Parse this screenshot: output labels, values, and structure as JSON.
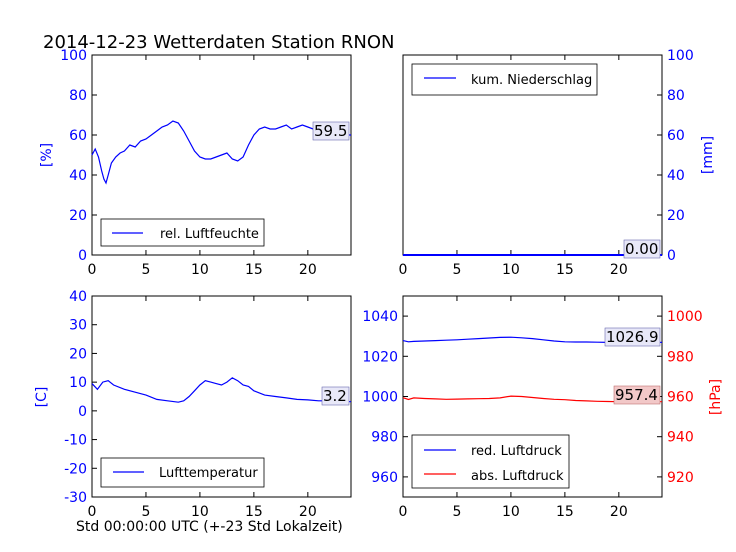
{
  "figure": {
    "title": "2014-12-23 Wetterdaten Station RNON",
    "xlabel": "Std 00:00:00 UTC (+-23 Std Lokalzeit)"
  },
  "colors": {
    "axis_blue": "#0000ff",
    "axis_red": "#ff0000",
    "line_blue": "#0000ff",
    "line_red": "#ff0000"
  },
  "chart_data": [
    {
      "id": "humidity",
      "type": "line",
      "ylabel": "[%]",
      "xlim": [
        0,
        24
      ],
      "ylim": [
        0,
        100
      ],
      "xticks": [
        0,
        5,
        10,
        15,
        20
      ],
      "yticks": [
        0,
        20,
        40,
        60,
        80,
        100
      ],
      "legend": "lower-left",
      "series": [
        {
          "name": "rel. Luftfeuchte",
          "color": "#0000ff",
          "x": [
            0,
            0.3,
            0.6,
            0.9,
            1.1,
            1.3,
            1.5,
            1.8,
            2.2,
            2.6,
            3.0,
            3.5,
            4.0,
            4.5,
            5.0,
            5.5,
            6.0,
            6.5,
            7.0,
            7.5,
            8.0,
            8.5,
            9.0,
            9.5,
            10.0,
            10.5,
            11.0,
            11.5,
            12.0,
            12.5,
            13.0,
            13.5,
            14.0,
            14.5,
            15.0,
            15.5,
            16.0,
            16.5,
            17.0,
            17.5,
            18.0,
            18.5,
            19.0,
            19.5,
            20.0,
            20.5,
            21.0,
            21.5,
            22.0,
            22.5,
            23.0,
            23.5,
            24.0
          ],
          "y": [
            50,
            53,
            49,
            42,
            38,
            36,
            40,
            46,
            49,
            51,
            52,
            55,
            54,
            57,
            58,
            60,
            62,
            64,
            65,
            67,
            66,
            62,
            57,
            52,
            49,
            48,
            48,
            49,
            50,
            51,
            48,
            47,
            49,
            55,
            60,
            63,
            64,
            63,
            63,
            64,
            65,
            63,
            64,
            65,
            64,
            63,
            62,
            62,
            61,
            61,
            60,
            60,
            60
          ]
        }
      ],
      "annotation": "59.5"
    },
    {
      "id": "precip",
      "type": "line",
      "ylabel": "[mm]",
      "xlim": [
        0,
        24
      ],
      "ylim": [
        0,
        100
      ],
      "xticks": [
        0,
        5,
        10,
        15,
        20
      ],
      "yticks": [
        0,
        20,
        40,
        60,
        80,
        100
      ],
      "legend": "upper-left",
      "series": [
        {
          "name": "kum. Niederschlag",
          "color": "#0000ff",
          "x": [
            0,
            24
          ],
          "y": [
            0,
            0
          ]
        }
      ],
      "annotation": "0.00"
    },
    {
      "id": "temperature",
      "type": "line",
      "ylabel": "[C]",
      "xlim": [
        0,
        24
      ],
      "ylim": [
        -30,
        40
      ],
      "xticks": [
        0,
        5,
        10,
        15,
        20
      ],
      "yticks": [
        -30,
        -20,
        -10,
        0,
        10,
        20,
        30,
        40
      ],
      "legend": "lower-left",
      "series": [
        {
          "name": "Lufttemperatur",
          "color": "#0000ff",
          "x": [
            0,
            0.5,
            1.0,
            1.5,
            2.0,
            3.0,
            4.0,
            5.0,
            6.0,
            7.0,
            8.0,
            8.5,
            9.0,
            9.5,
            10.0,
            10.5,
            11.0,
            11.5,
            12.0,
            12.5,
            13.0,
            13.5,
            14.0,
            14.5,
            15.0,
            16.0,
            17.0,
            18.0,
            19.0,
            20.0,
            21.0,
            22.0,
            23.0,
            24.0
          ],
          "y": [
            9.5,
            7.5,
            10.0,
            10.5,
            9.0,
            7.5,
            6.5,
            5.5,
            4.0,
            3.5,
            3.0,
            3.5,
            5.0,
            7.0,
            9.0,
            10.5,
            10.0,
            9.5,
            9.0,
            10.0,
            11.5,
            10.5,
            9.0,
            8.5,
            7.0,
            5.5,
            5.0,
            4.5,
            4.0,
            3.8,
            3.5,
            3.5,
            3.3,
            3.2
          ]
        }
      ],
      "annotation": "3.2"
    },
    {
      "id": "pressure",
      "type": "line",
      "ylabel": "[hPa]",
      "xlim": [
        0,
        24
      ],
      "ylim_left": [
        950,
        1050
      ],
      "ylim_right": [
        910,
        1010
      ],
      "xticks": [
        0,
        5,
        10,
        15,
        20
      ],
      "yticks_left": [
        960,
        980,
        1000,
        1020,
        1040
      ],
      "yticks_right": [
        920,
        940,
        960,
        980,
        1000
      ],
      "legend": "lower-left",
      "series": [
        {
          "name": "red. Luftdruck",
          "axis": "left",
          "color": "#0000ff",
          "x": [
            0,
            0.5,
            1.0,
            2.0,
            3.0,
            4.0,
            5.0,
            6.0,
            7.0,
            8.0,
            9.0,
            10.0,
            11.0,
            12.0,
            13.0,
            14.0,
            15.0,
            16.0,
            17.0,
            18.0,
            19.0,
            20.0,
            21.0,
            22.0,
            23.0,
            24.0
          ],
          "y": [
            1027.8,
            1027.2,
            1027.4,
            1027.6,
            1027.8,
            1028.0,
            1028.2,
            1028.5,
            1028.8,
            1029.1,
            1029.4,
            1029.5,
            1029.2,
            1028.8,
            1028.2,
            1027.6,
            1027.2,
            1027.1,
            1027.1,
            1027.0,
            1026.9,
            1026.9,
            1026.9,
            1026.8,
            1026.9,
            1026.9
          ]
        },
        {
          "name": "abs. Luftdruck",
          "axis": "right",
          "color": "#ff0000",
          "x": [
            0,
            0.5,
            1.0,
            2.0,
            3.0,
            4.0,
            5.0,
            6.0,
            7.0,
            8.0,
            9.0,
            10.0,
            11.0,
            12.0,
            13.0,
            14.0,
            15.0,
            16.0,
            17.0,
            18.0,
            19.0,
            20.0,
            21.0,
            22.0,
            23.0,
            24.0
          ],
          "y": [
            959.4,
            958.5,
            959.3,
            959.0,
            958.8,
            958.6,
            958.7,
            958.8,
            958.9,
            959.0,
            959.3,
            960.2,
            960.0,
            959.5,
            959.0,
            958.6,
            958.4,
            958.0,
            957.8,
            957.6,
            957.5,
            957.4,
            957.4,
            957.4,
            957.4,
            957.4
          ]
        }
      ],
      "annotation_left": "1026.9",
      "annotation_right": "957.4"
    }
  ]
}
